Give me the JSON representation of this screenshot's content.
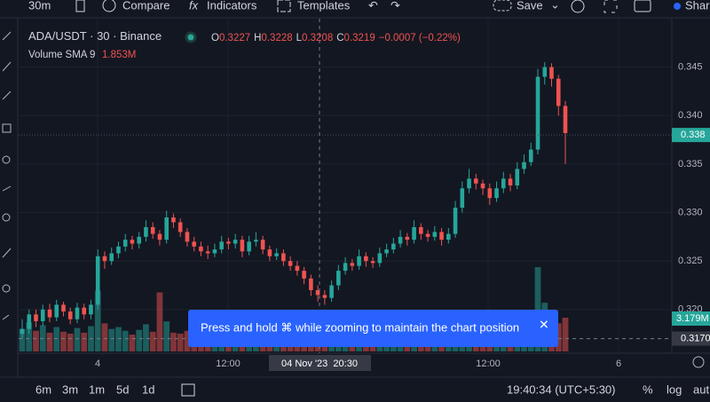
{
  "toolbar": {
    "interval": "30m",
    "compare": "Compare",
    "indicators": "Indicators",
    "templates": "Templates",
    "save": "Save",
    "share": "Shar"
  },
  "legend": {
    "symbol": "ADA/USDT",
    "interval": "30",
    "exchange": "Binance",
    "open_label": "O",
    "open": "0.3227",
    "high_label": "H",
    "high": "0.3228",
    "low_label": "L",
    "low": "0.3208",
    "close_label": "C",
    "close": "0.3219",
    "change": "−0.0007 (−0.22%)",
    "volume_label": "Volume SMA 9",
    "volume": "1.853M"
  },
  "chart": {
    "type": "candlestick",
    "ylim": [
      0.3155,
      0.35
    ],
    "yticks": [
      {
        "value": 0.345,
        "label": "0.345"
      },
      {
        "value": 0.34,
        "label": "0.340"
      },
      {
        "value": 0.335,
        "label": "0.335"
      },
      {
        "value": 0.33,
        "label": "0.330"
      },
      {
        "value": 0.325,
        "label": "0.325"
      },
      {
        "value": 0.32,
        "label": "0.320"
      }
    ],
    "last_price": {
      "value": 0.338,
      "label": "0.338"
    },
    "crosshair_price": {
      "value": 0.317,
      "label": "0.3170"
    },
    "volume_badge": "3.179M",
    "up_color": "#26a69a",
    "down_color": "#ef5350",
    "time_labels": [
      "4",
      "12:00",
      "12:00",
      "6"
    ],
    "crosshair_time": "04 Nov '23  20:30",
    "candles": [
      [
        0.3175,
        0.319,
        0.317,
        0.318
      ],
      [
        0.318,
        0.32,
        0.3175,
        0.3195
      ],
      [
        0.3195,
        0.32,
        0.3182,
        0.3188
      ],
      [
        0.3188,
        0.3205,
        0.3183,
        0.32
      ],
      [
        0.32,
        0.3206,
        0.3187,
        0.3192
      ],
      [
        0.3192,
        0.321,
        0.3188,
        0.3205
      ],
      [
        0.3205,
        0.3208,
        0.3193,
        0.3198
      ],
      [
        0.3198,
        0.3202,
        0.3185,
        0.319
      ],
      [
        0.319,
        0.3207,
        0.3186,
        0.3202
      ],
      [
        0.3202,
        0.3206,
        0.319,
        0.3195
      ],
      [
        0.3195,
        0.321,
        0.319,
        0.3205
      ],
      [
        0.3205,
        0.3262,
        0.32,
        0.3255
      ],
      [
        0.3255,
        0.326,
        0.3242,
        0.325
      ],
      [
        0.325,
        0.3264,
        0.3246,
        0.3258
      ],
      [
        0.3258,
        0.327,
        0.3253,
        0.3265
      ],
      [
        0.3265,
        0.3278,
        0.326,
        0.3272
      ],
      [
        0.3272,
        0.3276,
        0.3262,
        0.3268
      ],
      [
        0.3268,
        0.328,
        0.3263,
        0.3275
      ],
      [
        0.3275,
        0.3292,
        0.327,
        0.3285
      ],
      [
        0.3285,
        0.329,
        0.3273,
        0.3278
      ],
      [
        0.3278,
        0.3282,
        0.3266,
        0.3272
      ],
      [
        0.3272,
        0.3302,
        0.3268,
        0.3295
      ],
      [
        0.3295,
        0.3299,
        0.3284,
        0.329
      ],
      [
        0.329,
        0.3294,
        0.3275,
        0.328
      ],
      [
        0.328,
        0.3284,
        0.3265,
        0.327
      ],
      [
        0.327,
        0.3275,
        0.326,
        0.3265
      ],
      [
        0.3265,
        0.327,
        0.3255,
        0.326
      ],
      [
        0.326,
        0.3266,
        0.3252,
        0.3258
      ],
      [
        0.3258,
        0.3268,
        0.3254,
        0.3262
      ],
      [
        0.3262,
        0.3276,
        0.3258,
        0.327
      ],
      [
        0.327,
        0.3274,
        0.3262,
        0.3268
      ],
      [
        0.3268,
        0.3278,
        0.3263,
        0.3272
      ],
      [
        0.3272,
        0.3276,
        0.3254,
        0.326
      ],
      [
        0.326,
        0.3276,
        0.3256,
        0.327
      ],
      [
        0.327,
        0.328,
        0.3265,
        0.3272
      ],
      [
        0.3272,
        0.3276,
        0.3257,
        0.3262
      ],
      [
        0.3262,
        0.3266,
        0.325,
        0.3255
      ],
      [
        0.3255,
        0.3263,
        0.3251,
        0.3258
      ],
      [
        0.3258,
        0.3262,
        0.3245,
        0.325
      ],
      [
        0.325,
        0.3255,
        0.324,
        0.3245
      ],
      [
        0.3245,
        0.325,
        0.3235,
        0.324
      ],
      [
        0.324,
        0.3244,
        0.3226,
        0.3232
      ],
      [
        0.3232,
        0.3236,
        0.3214,
        0.322
      ],
      [
        0.322,
        0.3225,
        0.3208,
        0.3215
      ],
      [
        0.3215,
        0.322,
        0.3205,
        0.3212
      ],
      [
        0.3212,
        0.323,
        0.3208,
        0.3225
      ],
      [
        0.3225,
        0.3246,
        0.322,
        0.324
      ],
      [
        0.324,
        0.3254,
        0.3236,
        0.3248
      ],
      [
        0.3248,
        0.3252,
        0.324,
        0.3245
      ],
      [
        0.3245,
        0.3262,
        0.3241,
        0.3255
      ],
      [
        0.3255,
        0.3259,
        0.3244,
        0.325
      ],
      [
        0.325,
        0.3254,
        0.3243,
        0.3248
      ],
      [
        0.3248,
        0.3264,
        0.3244,
        0.3258
      ],
      [
        0.3258,
        0.3268,
        0.3254,
        0.3262
      ],
      [
        0.3262,
        0.3274,
        0.3258,
        0.3268
      ],
      [
        0.3268,
        0.3282,
        0.3264,
        0.3275
      ],
      [
        0.3275,
        0.3279,
        0.3266,
        0.3272
      ],
      [
        0.3272,
        0.3292,
        0.3268,
        0.3285
      ],
      [
        0.3285,
        0.3289,
        0.3272,
        0.3278
      ],
      [
        0.3278,
        0.3282,
        0.327,
        0.3275
      ],
      [
        0.3275,
        0.3286,
        0.3271,
        0.328
      ],
      [
        0.328,
        0.3284,
        0.3266,
        0.3272
      ],
      [
        0.3272,
        0.3284,
        0.3268,
        0.3278
      ],
      [
        0.3278,
        0.3312,
        0.3274,
        0.3305
      ],
      [
        0.3305,
        0.3332,
        0.33,
        0.3325
      ],
      [
        0.3325,
        0.3345,
        0.332,
        0.3335
      ],
      [
        0.3335,
        0.334,
        0.3324,
        0.333
      ],
      [
        0.333,
        0.3334,
        0.3318,
        0.3325
      ],
      [
        0.3325,
        0.333,
        0.3308,
        0.3315
      ],
      [
        0.3315,
        0.3332,
        0.3311,
        0.3325
      ],
      [
        0.3325,
        0.3342,
        0.332,
        0.3335
      ],
      [
        0.3335,
        0.334,
        0.3322,
        0.3328
      ],
      [
        0.3328,
        0.3352,
        0.3324,
        0.3345
      ],
      [
        0.3345,
        0.336,
        0.334,
        0.3352
      ],
      [
        0.3352,
        0.3372,
        0.3348,
        0.3365
      ],
      [
        0.3365,
        0.3448,
        0.336,
        0.344
      ],
      [
        0.344,
        0.3455,
        0.3432,
        0.345
      ],
      [
        0.345,
        0.3454,
        0.343,
        0.3438
      ],
      [
        0.3438,
        0.3442,
        0.34,
        0.341
      ],
      [
        0.341,
        0.3415,
        0.335,
        0.3382
      ]
    ],
    "volumes": [
      2.4,
      3.1,
      2.2,
      2.8,
      2.0,
      2.6,
      2.1,
      1.9,
      2.5,
      2.0,
      2.7,
      6.5,
      3.0,
      2.4,
      2.6,
      2.2,
      1.8,
      2.3,
      2.9,
      2.1,
      6.3,
      3.2,
      2.0,
      1.9,
      2.2,
      1.7,
      1.8,
      1.6,
      1.9,
      2.3,
      1.7,
      1.8,
      2.0,
      2.2,
      1.9,
      1.7,
      1.8,
      1.6,
      1.9,
      1.8,
      2.0,
      2.1,
      2.4,
      2.6,
      2.2,
      2.3,
      2.5,
      2.0,
      1.8,
      2.2,
      1.9,
      1.7,
      2.1,
      2.0,
      1.9,
      2.3,
      1.8,
      2.4,
      2.0,
      1.7,
      1.9,
      1.8,
      2.0,
      2.9,
      3.2,
      2.8,
      2.1,
      1.9,
      2.3,
      2.0,
      2.2,
      1.9,
      2.5,
      2.4,
      2.7,
      9.0,
      5.2,
      3.4,
      3.0,
      3.6
    ]
  },
  "toast": "Press and hold ⌘ while zooming to maintain the chart position",
  "footer": {
    "ranges": [
      "6m",
      "3m",
      "1m",
      "5d",
      "1d"
    ],
    "clock": "19:40:34 (UTC+5:30)",
    "percent": "%",
    "log": "log",
    "auto": "aut"
  }
}
